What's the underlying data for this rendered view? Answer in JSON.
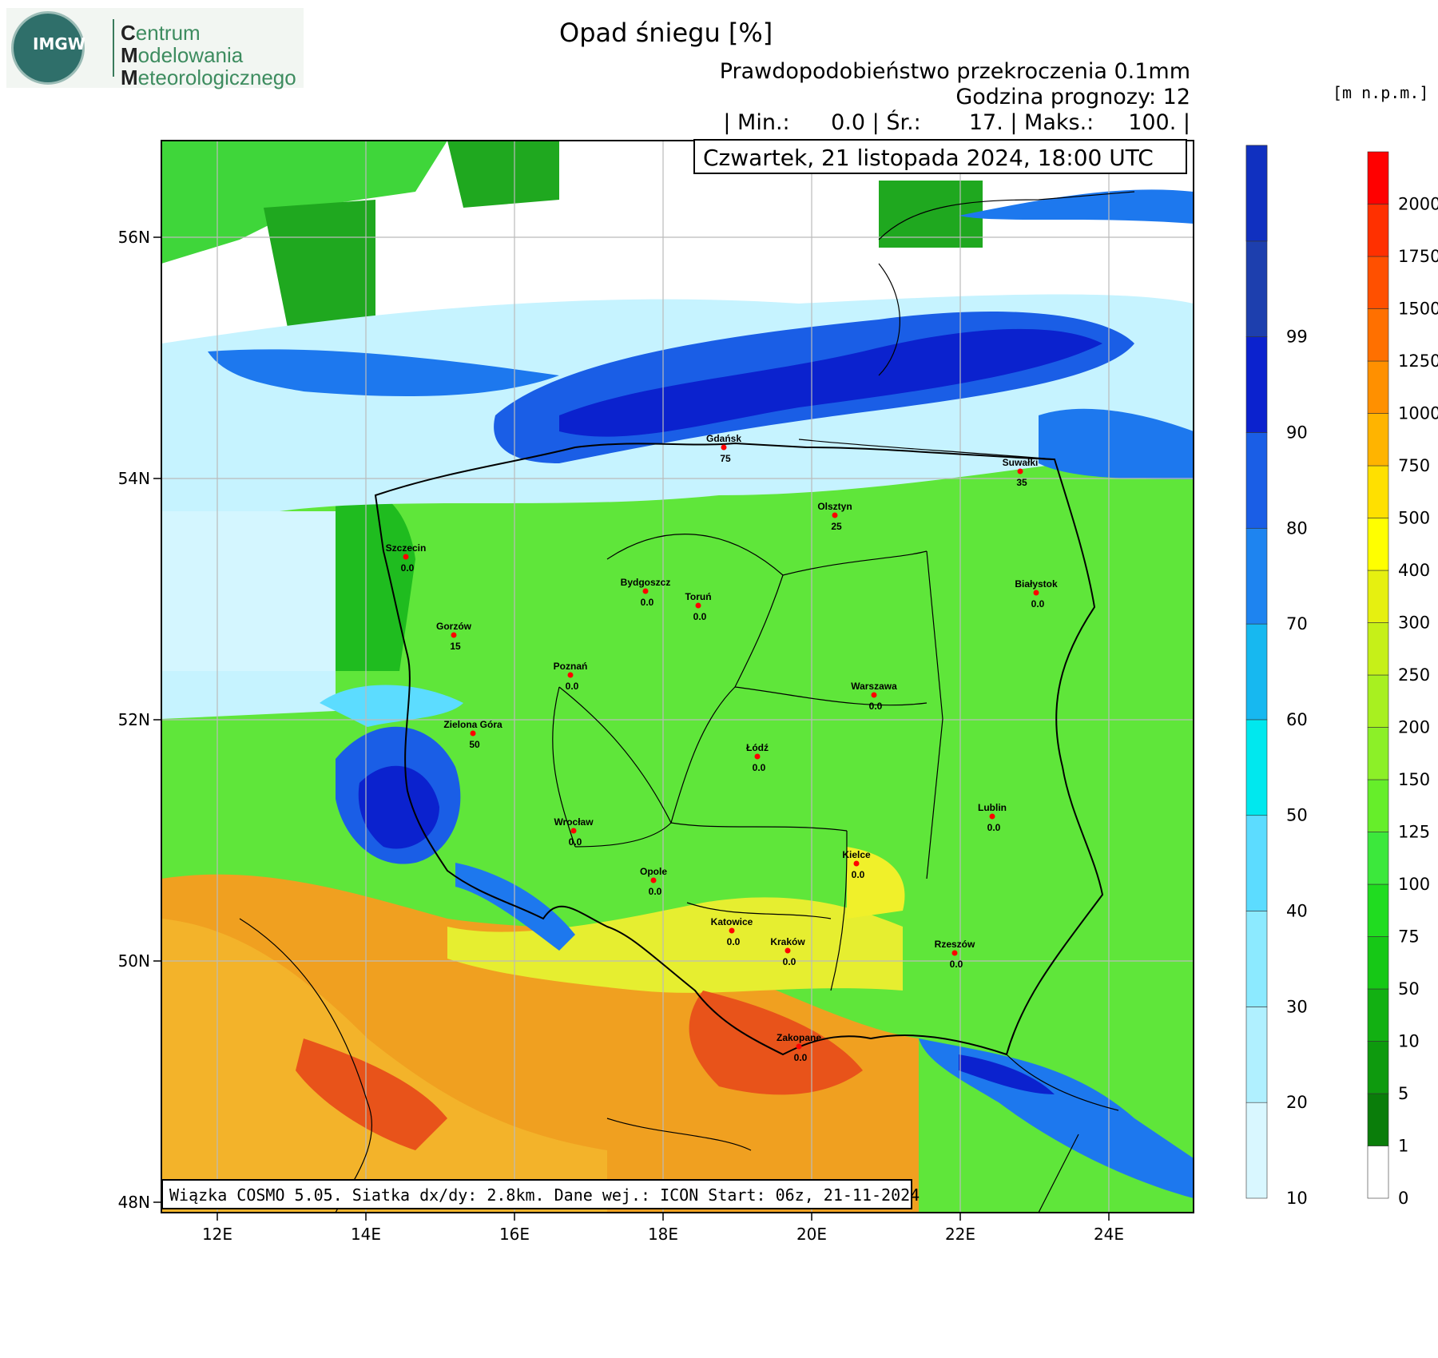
{
  "header": {
    "org_line1_initial": "C",
    "org_line1_rest": "entrum",
    "org_line2_initial": "M",
    "org_line2_rest": "odelowania",
    "org_line3_initial": "M",
    "org_line3_rest": "eteorologicznego",
    "logo_text": "IMGW",
    "title": "Opad śniegu [%]",
    "subtitle1": "Prawdopodobieństwo przekroczenia 0.1mm",
    "subtitle2": "Godzina prognozy: 12",
    "stats": "| Min.:      0.0 | Śr.:       17. | Maks.:     100. |",
    "date": "Czwartek, 21 listopada 2024, 18:00 UTC",
    "elev_unit": "[m n.p.m.]"
  },
  "footer": "Wiązka COSMO 5.05. Siatka dx/dy: 2.8km. Dane wej.: ICON Start: 06z, 21-11-2024",
  "axes": {
    "lat_labels": [
      "56N",
      "54N",
      "52N",
      "50N",
      "48N"
    ],
    "lon_labels": [
      "12E",
      "14E",
      "16E",
      "18E",
      "20E",
      "22E",
      "24E"
    ]
  },
  "prob_scale": {
    "labels": [
      "10",
      "20",
      "30",
      "40",
      "50",
      "60",
      "70",
      "80",
      "90",
      "99"
    ],
    "colors": [
      "#d9f7ff",
      "#b0f0ff",
      "#8ceaff",
      "#5cdcff",
      "#00e8ee",
      "#17b8f0",
      "#1e84f0",
      "#1a5ee6",
      "#0b22ce",
      "#1d3fae",
      "#1030c0"
    ]
  },
  "elev_scale": {
    "labels": [
      "0",
      "1",
      "5",
      "10",
      "50",
      "75",
      "100",
      "125",
      "150",
      "200",
      "250",
      "300",
      "400",
      "500",
      "750",
      "1000",
      "1250",
      "1500",
      "1750",
      "2000"
    ],
    "colors": [
      "#ffffff",
      "#0a7d0a",
      "#0e9a0e",
      "#12b012",
      "#16c816",
      "#20dc20",
      "#3ce83c",
      "#66ee2a",
      "#8cf028",
      "#a8f020",
      "#c6f018",
      "#e6f010",
      "#ffff00",
      "#ffe000",
      "#ffb400",
      "#ff9000",
      "#ff7000",
      "#ff5000",
      "#ff3000",
      "#ff0000"
    ]
  },
  "cities": [
    {
      "name": "Gdańsk",
      "value": "75"
    },
    {
      "name": "Suwałki",
      "value": "35"
    },
    {
      "name": "Olsztyn",
      "value": "25"
    },
    {
      "name": "Szczecin",
      "value": "0.0"
    },
    {
      "name": "Bydgoszcz",
      "value": "0.0"
    },
    {
      "name": "Toruń",
      "value": "0.0"
    },
    {
      "name": "Białystok",
      "value": "0.0"
    },
    {
      "name": "Gorzów",
      "value": "15"
    },
    {
      "name": "Poznań",
      "value": "0.0"
    },
    {
      "name": "Warszawa",
      "value": "0.0"
    },
    {
      "name": "Zielona Góra",
      "value": "50"
    },
    {
      "name": "Łódź",
      "value": "0.0"
    },
    {
      "name": "Wrocław",
      "value": "0.0"
    },
    {
      "name": "Lublin",
      "value": "0.0"
    },
    {
      "name": "Kielce",
      "value": "0.0"
    },
    {
      "name": "Opole",
      "value": "0.0"
    },
    {
      "name": "Katowice",
      "value": "0.0"
    },
    {
      "name": "Kraków",
      "value": "0.0"
    },
    {
      "name": "Rzeszów",
      "value": "0.0"
    },
    {
      "name": "Zakopane",
      "value": "0.0"
    }
  ]
}
